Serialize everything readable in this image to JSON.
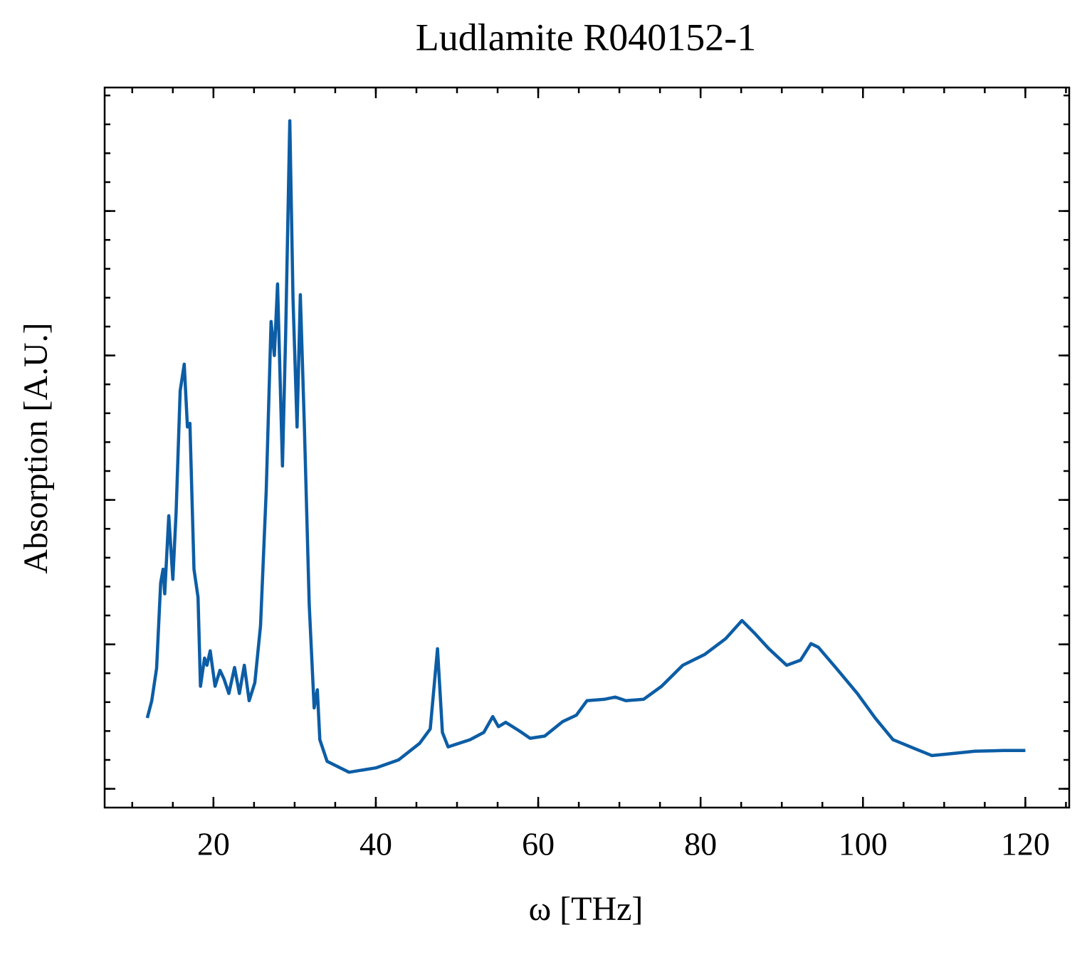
{
  "chart_data": {
    "type": "line",
    "title": "Ludlamite R040152-1",
    "xlabel": "ω [THz]",
    "ylabel": "Absorption [A.U.]",
    "xlim": [
      6.6,
      125.4
    ],
    "ylim": [
      -0.026,
      0.971
    ],
    "xticks": [
      20,
      40,
      60,
      80,
      100,
      120
    ],
    "yticks": [
      0,
      0.2,
      0.4,
      0.6,
      0.8
    ],
    "series": [
      {
        "color": "#0C5DA5",
        "x": [
          11.85,
          12.4,
          13.0,
          13.5,
          13.8,
          14.0,
          14.5,
          15.0,
          15.4,
          15.9,
          16.4,
          16.8,
          17.1,
          17.6,
          18.1,
          18.4,
          18.9,
          19.2,
          19.6,
          20.2,
          20.8,
          21.3,
          21.9,
          22.6,
          23.2,
          23.8,
          24.4,
          25.1,
          25.8,
          26.5,
          27.1,
          27.5,
          27.9,
          28.5,
          28.9,
          29.4,
          29.8,
          30.3,
          30.7,
          31.2,
          31.8,
          32.4,
          32.8,
          33.1,
          34.0,
          36.7,
          40.0,
          42.8,
          45.4,
          46.7,
          47.6,
          48.2,
          48.9,
          51.6,
          53.3,
          54.4,
          55.1,
          56.0,
          57.7,
          59.0,
          60.8,
          63.0,
          64.7,
          66.0,
          68.2,
          69.5,
          70.8,
          73.0,
          75.2,
          77.8,
          80.5,
          83.1,
          85.1,
          86.6,
          88.4,
          90.6,
          92.3,
          93.6,
          94.5,
          96.7,
          99.3,
          101.5,
          103.7,
          106.3,
          108.5,
          110.3,
          113.8,
          117.3,
          120.0
        ],
        "values": [
          0.098,
          0.122,
          0.167,
          0.285,
          0.304,
          0.27,
          0.378,
          0.29,
          0.383,
          0.551,
          0.588,
          0.501,
          0.506,
          0.304,
          0.265,
          0.142,
          0.181,
          0.171,
          0.191,
          0.142,
          0.164,
          0.152,
          0.132,
          0.168,
          0.132,
          0.171,
          0.122,
          0.147,
          0.226,
          0.413,
          0.647,
          0.6,
          0.699,
          0.447,
          0.63,
          0.925,
          0.679,
          0.501,
          0.684,
          0.501,
          0.255,
          0.112,
          0.137,
          0.068,
          0.038,
          0.023,
          0.029,
          0.04,
          0.063,
          0.083,
          0.194,
          0.078,
          0.058,
          0.068,
          0.078,
          0.1,
          0.086,
          0.092,
          0.08,
          0.07,
          0.073,
          0.093,
          0.102,
          0.122,
          0.124,
          0.127,
          0.122,
          0.124,
          0.142,
          0.171,
          0.186,
          0.208,
          0.233,
          0.216,
          0.194,
          0.171,
          0.178,
          0.201,
          0.196,
          0.167,
          0.132,
          0.098,
          0.068,
          0.056,
          0.046,
          0.048,
          0.052,
          0.053,
          0.053
        ]
      }
    ]
  }
}
